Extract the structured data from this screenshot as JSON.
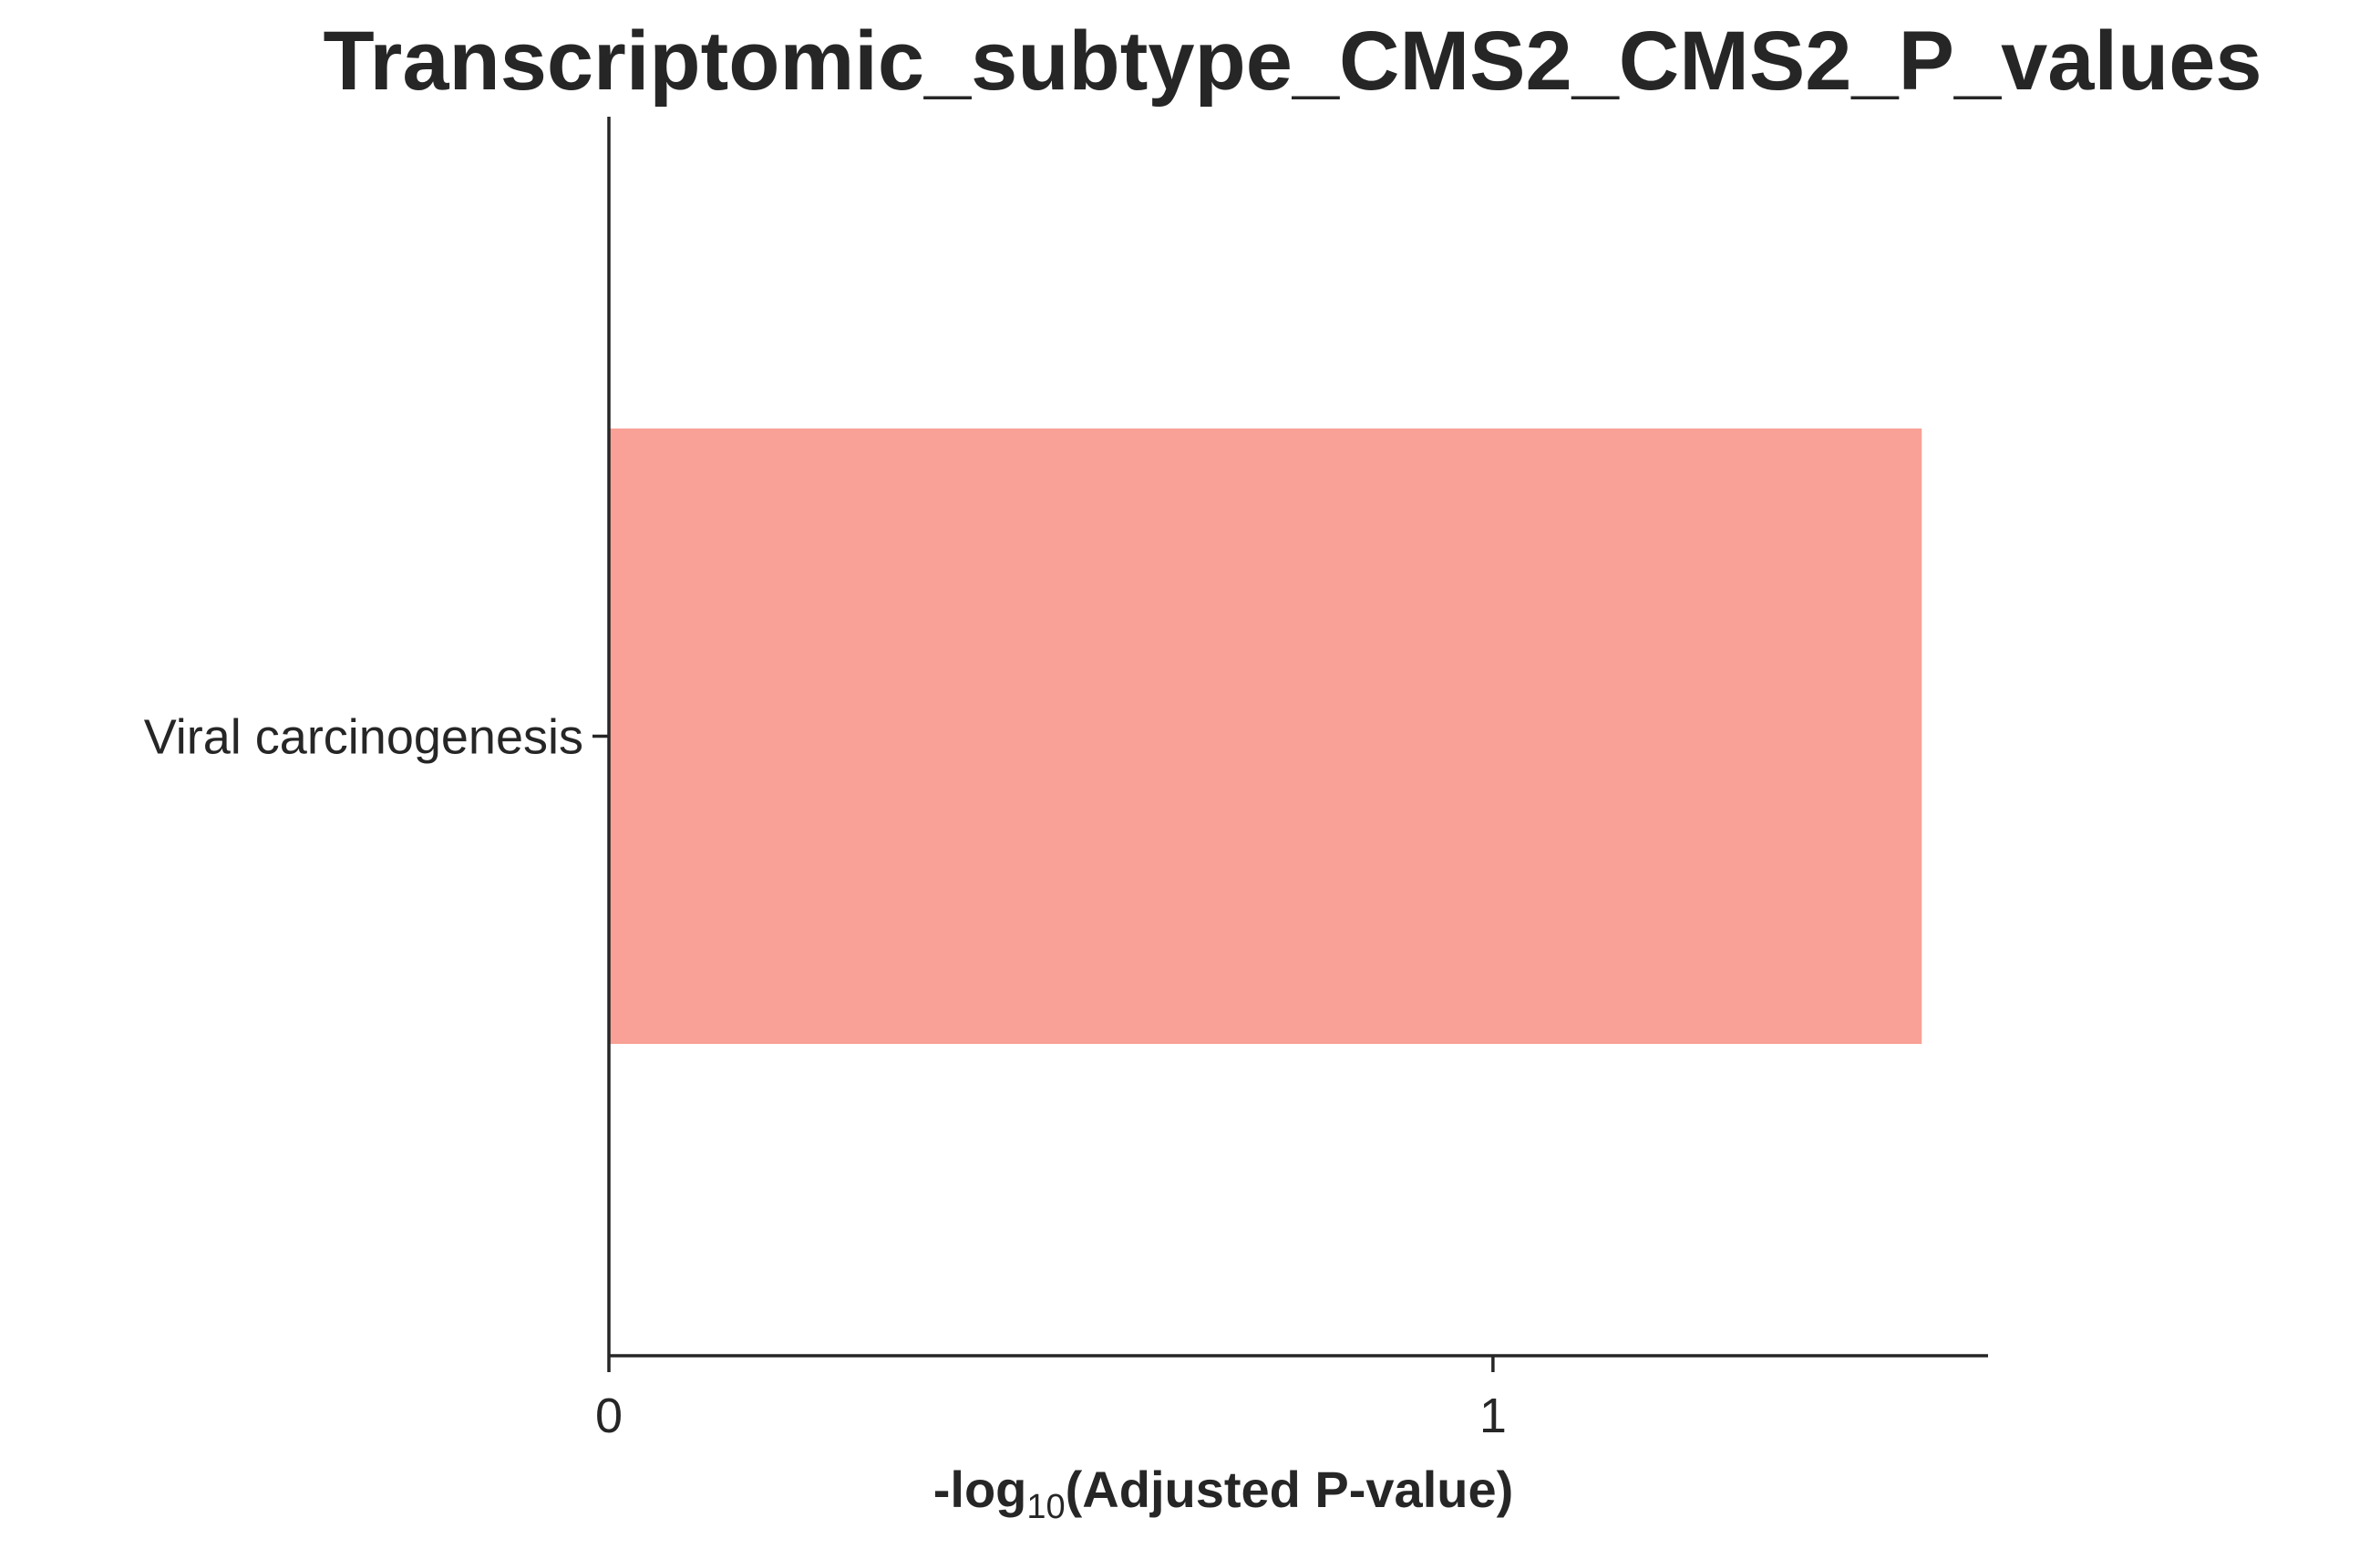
{
  "chart_data": {
    "type": "bar",
    "orientation": "horizontal",
    "title": "Transcriptomic_subtype_CMS2_CMS2_P_values",
    "xlabel": {
      "prefix": "-log",
      "subscript": "10",
      "suffix": "(Adjusted P-value)"
    },
    "ylabel": "",
    "categories": [
      "Viral carcinogenesis"
    ],
    "values": [
      1.485
    ],
    "xlim": [
      0,
      1.56
    ],
    "xticks": [
      0,
      1
    ],
    "xtick_labels": [
      "0",
      "1"
    ],
    "bar_color": "#f9a196",
    "axis_color": "#262626",
    "grid": false,
    "legend": "none"
  }
}
